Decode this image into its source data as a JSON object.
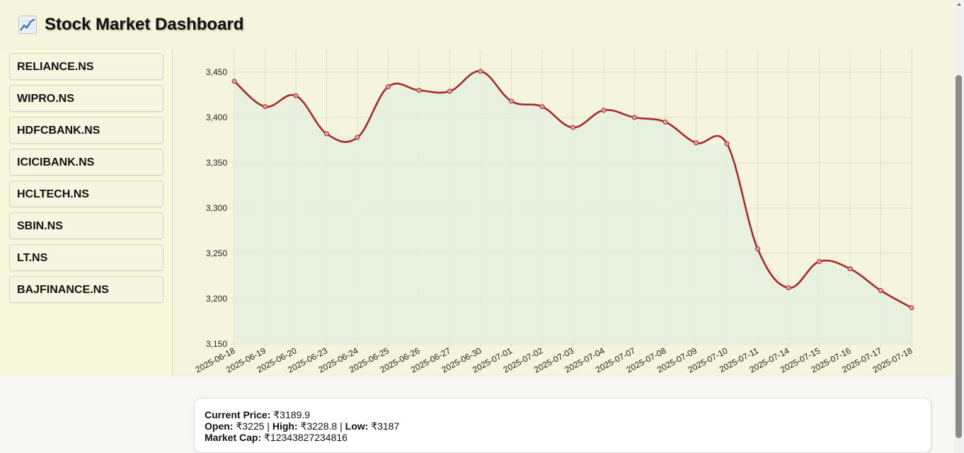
{
  "header": {
    "title": "Stock Market Dashboard",
    "icon": "chart-increasing-icon"
  },
  "sidebar": {
    "items": [
      {
        "label": "RELIANCE.NS"
      },
      {
        "label": "WIPRO.NS"
      },
      {
        "label": "HDFCBANK.NS"
      },
      {
        "label": "ICICIBANK.NS"
      },
      {
        "label": "HCLTECH.NS"
      },
      {
        "label": "SBIN.NS"
      },
      {
        "label": "LT.NS"
      },
      {
        "label": "BAJFINANCE.NS"
      }
    ]
  },
  "chart_data": {
    "type": "area",
    "title": "",
    "xlabel": "",
    "ylabel": "",
    "ylim": [
      3150,
      3475
    ],
    "yticks": [
      3150,
      3200,
      3250,
      3300,
      3350,
      3400,
      3450
    ],
    "ytick_labels": [
      "3,150",
      "3,200",
      "3,250",
      "3,300",
      "3,350",
      "3,400",
      "3,450"
    ],
    "grid": true,
    "legend": "none",
    "line_color": "#a52a2a",
    "fill_color": "#e5eedf",
    "x": [
      "2025-06-18",
      "2025-06-19",
      "2025-06-20",
      "2025-06-23",
      "2025-06-24",
      "2025-06-25",
      "2025-06-26",
      "2025-06-27",
      "2025-06-30",
      "2025-07-01",
      "2025-07-02",
      "2025-07-03",
      "2025-07-04",
      "2025-07-07",
      "2025-07-08",
      "2025-07-09",
      "2025-07-10",
      "2025-07-11",
      "2025-07-14",
      "2025-07-15",
      "2025-07-16",
      "2025-07-17",
      "2025-07-18"
    ],
    "values": [
      3440,
      3412,
      3424,
      3382,
      3378,
      3434,
      3430,
      3429,
      3451,
      3418,
      3412,
      3389,
      3408,
      3400,
      3395,
      3372,
      3371,
      3255,
      3212,
      3241,
      3233,
      3209,
      3190
    ]
  },
  "info": {
    "current_price_label": "Current Price:",
    "current_price": "₹3189.9",
    "open_label": "Open:",
    "open": "₹3225",
    "sep1": "|",
    "high_label": "High:",
    "high": "₹3228.8",
    "sep2": "|",
    "low_label": "Low:",
    "low": "₹3187",
    "market_cap_label": "Market Cap:",
    "market_cap": "₹12343827234816"
  }
}
